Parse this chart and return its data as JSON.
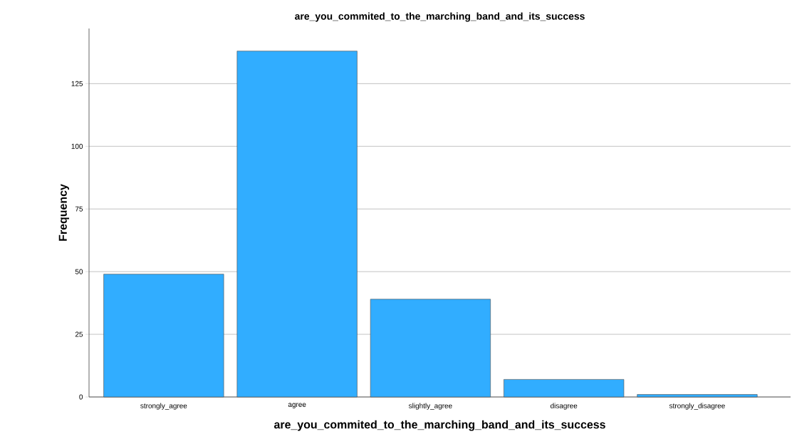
{
  "chart_data": {
    "type": "bar",
    "title": "are_you_commited_to_the_marching_band_and_its_success",
    "xlabel": "are_you_commited_to_the_marching_band_and_its_success",
    "ylabel": "Frequency",
    "categories": [
      "strongly_agree",
      "agree",
      "slightly_agree",
      "disagree",
      "strongly_disagree"
    ],
    "values": [
      49,
      138,
      39,
      7,
      1
    ],
    "color": "#31adff",
    "ylim": [
      0,
      147
    ],
    "yticks": [
      0,
      25,
      50,
      75,
      100,
      125
    ],
    "grid": "y"
  }
}
